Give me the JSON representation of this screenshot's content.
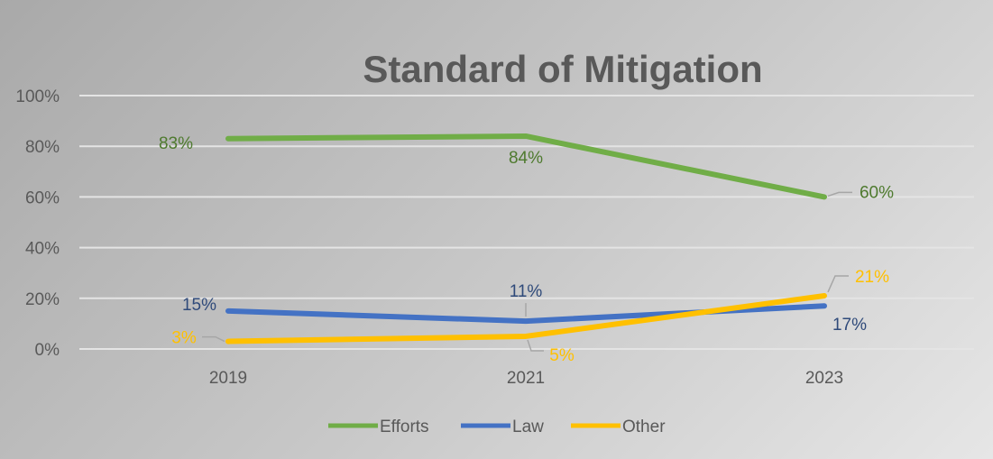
{
  "chart_data": {
    "type": "line",
    "title": "Standard of Mitigation",
    "xlabel": "",
    "ylabel": "",
    "categories": [
      "2019",
      "2021",
      "2023"
    ],
    "ylim": [
      0,
      100
    ],
    "yticks": [
      "0%",
      "20%",
      "40%",
      "60%",
      "80%",
      "100%"
    ],
    "grid": true,
    "legend_position": "bottom",
    "series": [
      {
        "name": "Efforts",
        "color": "#70ad47",
        "label_color": "#4e7a2e",
        "values": [
          83,
          84,
          60
        ],
        "labels": [
          "83%",
          "84%",
          "60%"
        ]
      },
      {
        "name": "Law",
        "color": "#4472c4",
        "label_color": "#2f4a7a",
        "values": [
          15,
          11,
          17
        ],
        "labels": [
          "15%",
          "11%",
          "17%"
        ]
      },
      {
        "name": "Other",
        "color": "#ffc000",
        "label_color": "#ffc000",
        "values": [
          3,
          5,
          21
        ],
        "labels": [
          "3%",
          "5%",
          "21%"
        ]
      }
    ]
  }
}
